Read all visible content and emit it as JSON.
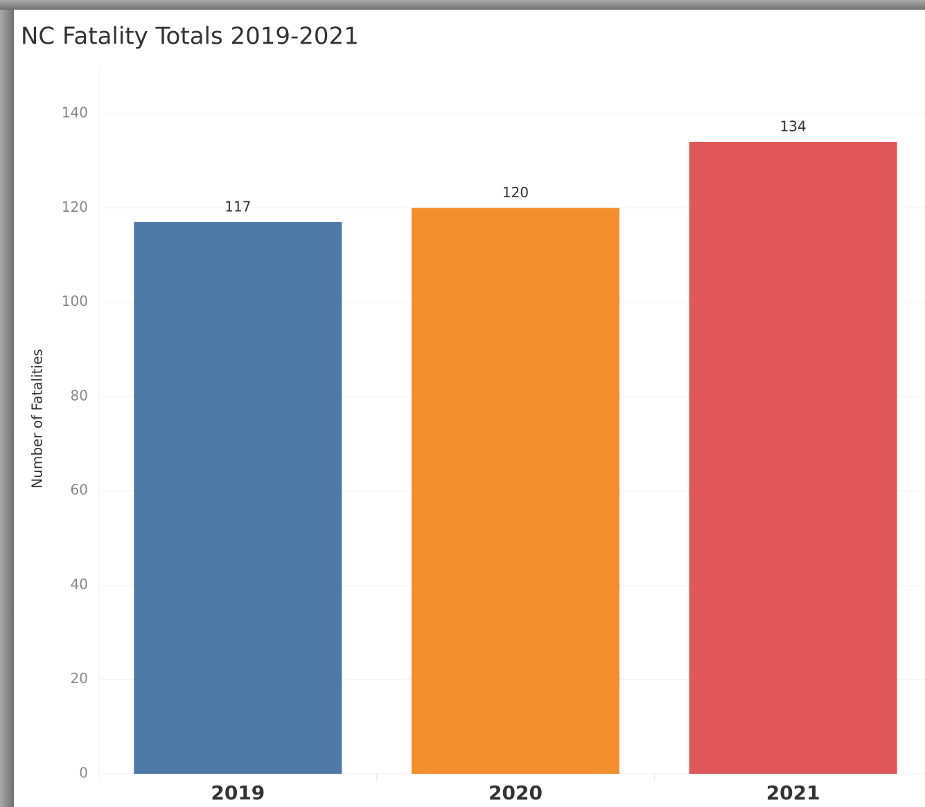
{
  "chart_data": {
    "type": "bar",
    "title": "NC Fatality Totals 2019-2021",
    "y_label": "Number of Fatalities",
    "categories": [
      "2019",
      "2020",
      "2021"
    ],
    "values": [
      117,
      120,
      134
    ],
    "colors": [
      "#4e79a7",
      "#f28e2b",
      "#e15759"
    ],
    "ylim": [
      0,
      150
    ],
    "yticks": [
      0,
      20,
      40,
      60,
      80,
      100,
      120,
      140
    ],
    "grid": true
  }
}
